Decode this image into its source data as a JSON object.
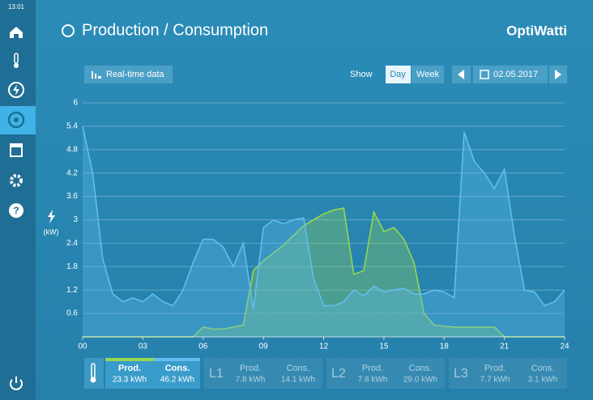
{
  "header": {
    "time": "13:01",
    "title": "Production / Consumption",
    "logo": "OptiWatti"
  },
  "toolbar": {
    "realtime": "Real-time data",
    "show": "Show",
    "views": [
      "Day",
      "Week"
    ],
    "date": "02.05.2017"
  },
  "chart_data": {
    "type": "area",
    "y_label": "(kW)",
    "x": [
      0,
      0.5,
      1,
      1.5,
      2,
      2.5,
      3,
      3.5,
      4,
      4.5,
      5,
      5.5,
      6,
      6.5,
      7,
      7.5,
      8,
      8.5,
      9,
      9.5,
      10,
      10.5,
      11,
      11.5,
      12,
      12.5,
      13,
      13.5,
      14,
      14.5,
      15,
      15.5,
      16,
      16.5,
      17,
      17.5,
      18,
      18.5,
      19,
      19.5,
      20,
      20.5,
      21,
      21.5,
      22,
      22.5,
      23,
      23.5,
      24
    ],
    "series": [
      {
        "name": "Cons.",
        "color": "#62bdf0",
        "values": [
          5.4,
          4.2,
          2.0,
          1.1,
          0.9,
          1.0,
          0.9,
          1.1,
          0.9,
          0.8,
          1.2,
          1.9,
          2.5,
          2.5,
          2.3,
          1.8,
          2.4,
          0.7,
          2.8,
          3.0,
          2.9,
          3.0,
          3.05,
          1.5,
          0.8,
          0.8,
          0.9,
          1.2,
          1.05,
          1.3,
          1.15,
          1.2,
          1.25,
          1.1,
          1.1,
          1.2,
          1.15,
          1.0,
          5.25,
          4.5,
          4.2,
          3.8,
          4.3,
          2.6,
          1.2,
          1.15,
          0.8,
          0.9,
          1.2
        ]
      },
      {
        "name": "Prod.",
        "color": "#95d651",
        "values": [
          0,
          0,
          0,
          0,
          0,
          0,
          0,
          0,
          0,
          0,
          0,
          0,
          0.25,
          0.2,
          0.2,
          0.25,
          0.3,
          1.7,
          1.95,
          2.15,
          2.35,
          2.6,
          2.85,
          3.0,
          3.15,
          3.25,
          3.3,
          1.6,
          1.7,
          3.2,
          2.7,
          2.8,
          2.5,
          1.9,
          0.6,
          0.3,
          0.27,
          0.25,
          0.25,
          0.25,
          0.25,
          0.25,
          0,
          0,
          0,
          0,
          0,
          0,
          0
        ]
      }
    ],
    "xlim": [
      0,
      24
    ],
    "xticks": [
      {
        "value": 0,
        "label": "00"
      },
      {
        "value": 3,
        "label": "03"
      },
      {
        "value": 6,
        "label": "06"
      },
      {
        "value": 9,
        "label": "09"
      },
      12,
      15,
      18,
      21,
      24
    ],
    "ylim": [
      0,
      6
    ],
    "yticks": [
      0.6,
      1.2,
      1.8,
      2.4,
      3,
      3.6,
      4.2,
      4.8,
      5.4,
      6
    ],
    "grid": true
  },
  "summary": {
    "total": {
      "prod_label": "Prod.",
      "prod": "23.3 kWh",
      "cons_label": "Cons.",
      "cons": "46.2 kWh"
    },
    "phases": [
      {
        "name": "L1",
        "prod_label": "Prod.",
        "prod": "7.8 kWh",
        "cons_label": "Cons.",
        "cons": "14.1 kWh"
      },
      {
        "name": "L2",
        "prod_label": "Prod.",
        "prod": "7.8 kWh",
        "cons_label": "Cons.",
        "cons": "29.0 kWh"
      },
      {
        "name": "L3",
        "prod_label": "Prod.",
        "prod": "7.7 kWh",
        "cons_label": "Cons.",
        "cons": "3.1 kWh"
      }
    ]
  }
}
